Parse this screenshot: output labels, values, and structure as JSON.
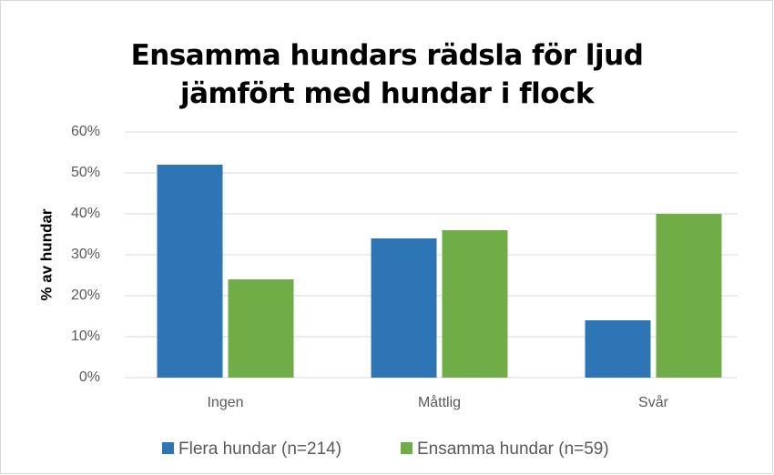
{
  "chart_data": {
    "type": "bar",
    "title": "Ensamma hundars rädsla för ljud jämfört med hundar i flock",
    "ylabel": "% av hundar",
    "categories": [
      "Ingen",
      "Måttlig",
      "Svår"
    ],
    "series": [
      {
        "name": "Flera hundar (n=214)",
        "color": "#2e75b6",
        "values": [
          52,
          34,
          14
        ]
      },
      {
        "name": "Ensamma hundar (n=59)",
        "color": "#70ad47",
        "values": [
          24,
          36,
          40
        ]
      }
    ],
    "ylim": [
      0,
      60
    ],
    "yticks": [
      {
        "value": 0,
        "label": "0%"
      },
      {
        "value": 10,
        "label": "10%"
      },
      {
        "value": 20,
        "label": "20%"
      },
      {
        "value": 30,
        "label": "30%"
      },
      {
        "value": 40,
        "label": "40%"
      },
      {
        "value": 50,
        "label": "50%"
      },
      {
        "value": 60,
        "label": "60%"
      }
    ],
    "grid": true,
    "legend": "bottom"
  }
}
